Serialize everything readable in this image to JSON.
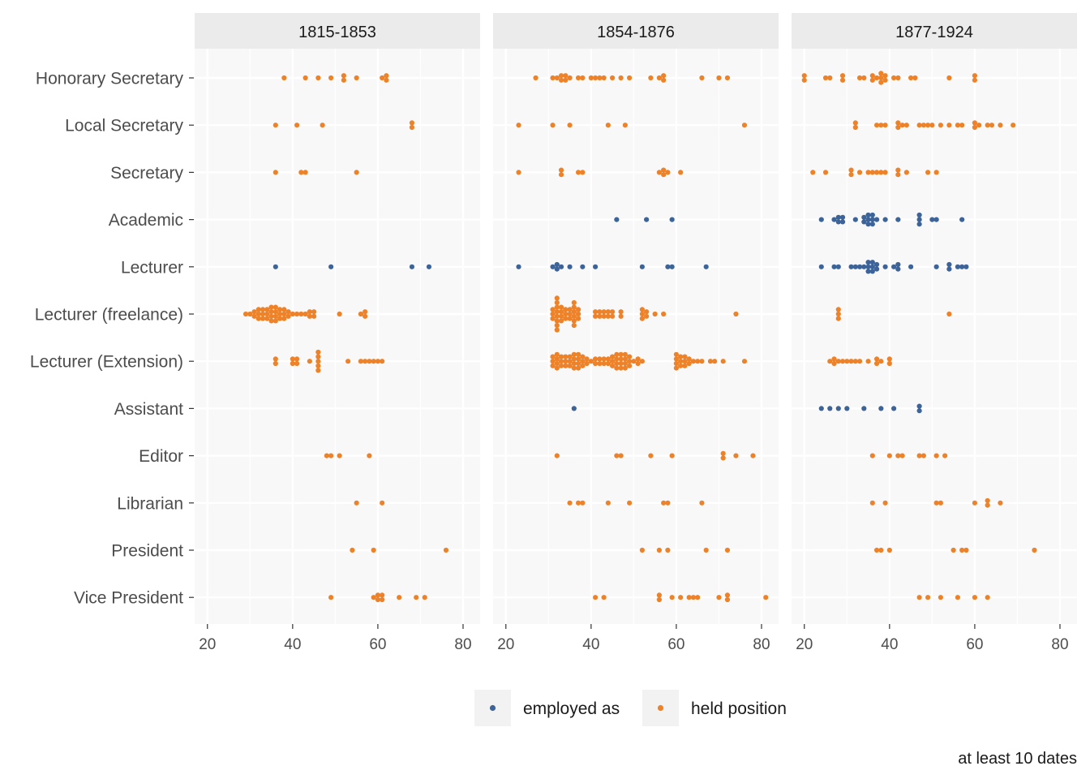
{
  "chart_data": {
    "type": "scatter",
    "xlim": [
      17,
      84
    ],
    "x_ticks": [
      20,
      40,
      60,
      80
    ],
    "grid": true,
    "legend_position": "bottom",
    "caption": "at least 10 dates",
    "categories": [
      "Honorary Secretary",
      "Local Secretary",
      "Secretary",
      "Academic",
      "Lecturer",
      "Lecturer (freelance)",
      "Lecturer (Extension)",
      "Assistant",
      "Editor",
      "Librarian",
      "President",
      "Vice President"
    ],
    "series": [
      {
        "name": "employed as",
        "color": "#3d6499"
      },
      {
        "name": "held position",
        "color": "#ee8229"
      }
    ],
    "panels": [
      {
        "title": "1815-1853",
        "points": {
          "Honorary Secretary": {
            "held position": [
              38,
              43,
              46,
              49,
              52,
              52,
              55,
              61,
              62,
              62
            ]
          },
          "Local Secretary": {
            "held position": [
              36,
              41,
              47,
              68,
              68
            ]
          },
          "Secretary": {
            "held position": [
              36,
              42,
              43,
              55
            ]
          },
          "Academic": {},
          "Lecturer": {
            "employed as": [
              36,
              49,
              68,
              72
            ]
          },
          "Lecturer (freelance)": {
            "held position": [
              29,
              30,
              31,
              31,
              32,
              32,
              32,
              33,
              33,
              33,
              34,
              34,
              34,
              35,
              35,
              35,
              35,
              36,
              36,
              36,
              36,
              37,
              37,
              37,
              38,
              38,
              38,
              39,
              39,
              40,
              41,
              42,
              43,
              44,
              44,
              45,
              45,
              51,
              56,
              57,
              57
            ]
          },
          "Lecturer (Extension)": {
            "held position": [
              36,
              36,
              40,
              40,
              41,
              41,
              44,
              46,
              46,
              46,
              46,
              46,
              53,
              56,
              57,
              58,
              59,
              60,
              61
            ]
          },
          "Assistant": {},
          "Editor": {
            "held position": [
              48,
              49,
              51,
              58
            ]
          },
          "Librarian": {
            "held position": [
              55,
              61
            ]
          },
          "President": {
            "held position": [
              54,
              59,
              76
            ]
          },
          "Vice President": {
            "held position": [
              49,
              59,
              60,
              60,
              61,
              61,
              65,
              69,
              71
            ]
          }
        }
      },
      {
        "title": "1854-1876",
        "points": {
          "Honorary Secretary": {
            "held position": [
              27,
              31,
              32,
              33,
              33,
              34,
              34,
              35,
              37,
              38,
              40,
              41,
              42,
              43,
              45,
              47,
              49,
              54,
              56,
              57,
              57,
              66,
              70,
              72
            ]
          },
          "Local Secretary": {
            "held position": [
              23,
              31,
              35,
              44,
              48,
              76
            ]
          },
          "Secretary": {
            "held position": [
              23,
              33,
              33,
              37,
              38,
              56,
              57,
              57,
              58,
              61
            ]
          },
          "Academic": {
            "employed as": [
              46,
              53,
              59
            ]
          },
          "Lecturer": {
            "employed as": [
              23,
              31,
              32,
              32,
              33,
              35,
              38,
              41,
              52,
              58,
              59,
              67
            ]
          },
          "Lecturer (freelance)": {
            "held position": [
              31,
              31,
              31,
              32,
              32,
              32,
              32,
              32,
              32,
              32,
              32,
              33,
              33,
              33,
              33,
              34,
              34,
              34,
              35,
              35,
              35,
              36,
              36,
              36,
              36,
              36,
              36,
              37,
              37,
              37,
              41,
              41,
              42,
              42,
              43,
              43,
              44,
              44,
              45,
              45,
              47,
              47,
              52,
              52,
              52,
              53,
              53,
              55,
              57,
              74
            ]
          },
          "Lecturer (Extension)": {
            "held position": [
              31,
              31,
              31,
              32,
              32,
              32,
              32,
              33,
              33,
              33,
              34,
              34,
              34,
              35,
              35,
              35,
              36,
              36,
              36,
              36,
              37,
              37,
              37,
              37,
              38,
              38,
              38,
              39,
              39,
              40,
              41,
              41,
              42,
              42,
              43,
              43,
              44,
              44,
              45,
              45,
              45,
              46,
              46,
              46,
              46,
              47,
              47,
              47,
              47,
              48,
              48,
              48,
              48,
              49,
              49,
              49,
              50,
              51,
              51,
              52,
              60,
              60,
              60,
              60,
              61,
              61,
              61,
              62,
              62,
              62,
              63,
              63,
              64,
              65,
              66,
              68,
              69,
              71,
              76
            ]
          },
          "Assistant": {
            "employed as": [
              36
            ]
          },
          "Editor": {
            "held position": [
              32,
              46,
              47,
              54,
              59,
              71,
              71,
              74,
              78
            ]
          },
          "Librarian": {
            "held position": [
              35,
              37,
              38,
              44,
              49,
              57,
              58,
              66
            ]
          },
          "President": {
            "held position": [
              52,
              56,
              58,
              67,
              72
            ]
          },
          "Vice President": {
            "held position": [
              41,
              43,
              56,
              56,
              59,
              61,
              63,
              64,
              65,
              70,
              72,
              72,
              81
            ]
          }
        }
      },
      {
        "title": "1877-1924",
        "points": {
          "Honorary Secretary": {
            "held position": [
              20,
              20,
              25,
              26,
              29,
              29,
              33,
              34,
              36,
              36,
              37,
              38,
              38,
              38,
              39,
              39,
              41,
              42,
              45,
              46,
              54,
              60,
              60
            ]
          },
          "Local Secretary": {
            "held position": [
              32,
              32,
              37,
              38,
              39,
              42,
              42,
              43,
              44,
              47,
              48,
              49,
              50,
              52,
              54,
              56,
              57,
              60,
              60,
              61,
              63,
              64,
              66,
              69
            ]
          },
          "Secretary": {
            "held position": [
              22,
              25,
              31,
              31,
              33,
              35,
              36,
              37,
              38,
              39,
              42,
              42,
              44,
              49,
              51
            ]
          },
          "Academic": {
            "employed as": [
              24,
              27,
              28,
              28,
              29,
              29,
              32,
              34,
              34,
              35,
              35,
              35,
              36,
              36,
              36,
              37,
              39,
              42,
              47,
              47,
              47,
              50,
              51,
              57
            ]
          },
          "Lecturer": {
            "employed as": [
              24,
              27,
              28,
              31,
              32,
              33,
              34,
              35,
              35,
              35,
              36,
              36,
              36,
              37,
              37,
              39,
              41,
              42,
              42,
              45,
              51,
              54,
              54,
              56,
              57,
              58
            ]
          },
          "Lecturer (freelance)": {
            "held position": [
              28,
              28,
              28,
              54
            ]
          },
          "Lecturer (Extension)": {
            "held position": [
              26,
              27,
              27,
              28,
              29,
              30,
              31,
              32,
              33,
              35,
              37,
              37,
              38,
              40,
              40
            ]
          },
          "Assistant": {
            "employed as": [
              24,
              26,
              28,
              30,
              34,
              38,
              41,
              47,
              47
            ]
          },
          "Editor": {
            "held position": [
              36,
              40,
              42,
              43,
              47,
              48,
              51,
              53
            ]
          },
          "Librarian": {
            "held position": [
              36,
              39,
              51,
              52,
              60,
              63,
              63,
              66
            ]
          },
          "President": {
            "held position": [
              37,
              38,
              40,
              55,
              57,
              58,
              74
            ]
          },
          "Vice President": {
            "held position": [
              47,
              49,
              52,
              56,
              60,
              63
            ]
          }
        }
      }
    ]
  }
}
